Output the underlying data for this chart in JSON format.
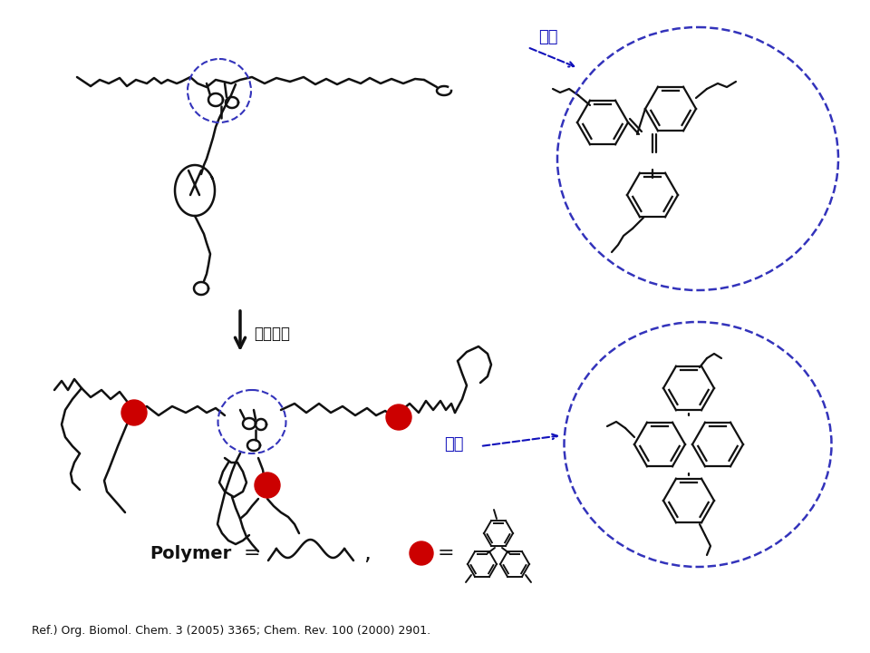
{
  "background_color": "#ffffff",
  "ref_text": "Ref.) Org. Biomol. Chem. 3 (2005) 3365; Chem. Rev. 100 (2000) 2901.",
  "label_kakuodae": "확대",
  "label_reaction": "가교반응",
  "label_polymer": "Polymer",
  "red_dot_color": "#cc0000",
  "blue_color": "#1111bb",
  "dashed_color": "#3333bb",
  "line_color": "#111111",
  "figsize": [
    9.6,
    7.2
  ],
  "dpi": 100
}
